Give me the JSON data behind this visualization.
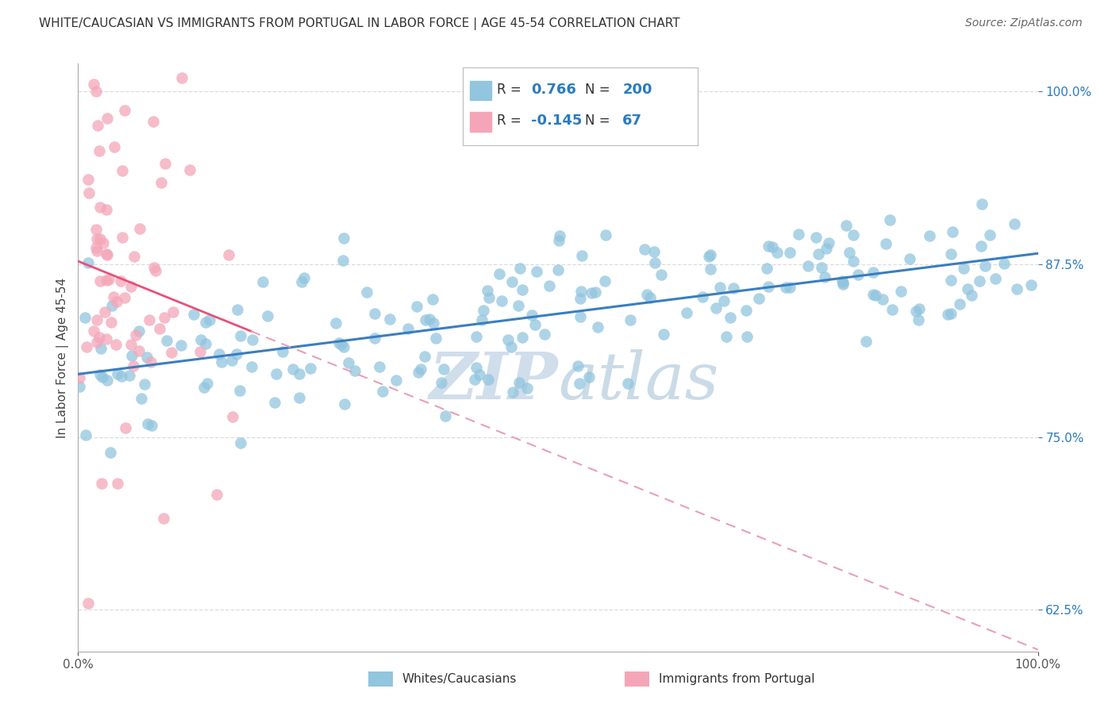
{
  "title": "WHITE/CAUCASIAN VS IMMIGRANTS FROM PORTUGAL IN LABOR FORCE | AGE 45-54 CORRELATION CHART",
  "source": "Source: ZipAtlas.com",
  "ylabel": "In Labor Force | Age 45-54",
  "legend_label1": "Whites/Caucasians",
  "legend_label2": "Immigrants from Portugal",
  "R1": 0.766,
  "N1": 200,
  "R2": -0.145,
  "N2": 67,
  "blue_color": "#92c5de",
  "pink_color": "#f4a6b8",
  "blue_line_color": "#3a7ebf",
  "pink_line_color": "#e8507a",
  "pink_line_dash_color": "#e8a0b4",
  "R_color": "#2b7bbd",
  "watermark_color": "#c8d8e8",
  "xlim": [
    0.0,
    1.0
  ],
  "ylim": [
    0.595,
    1.02
  ],
  "yticks": [
    0.625,
    0.75,
    0.875,
    1.0
  ],
  "xticks": [
    0.0,
    1.0
  ],
  "grid_color": "#dddddd",
  "spine_color": "#aaaaaa"
}
